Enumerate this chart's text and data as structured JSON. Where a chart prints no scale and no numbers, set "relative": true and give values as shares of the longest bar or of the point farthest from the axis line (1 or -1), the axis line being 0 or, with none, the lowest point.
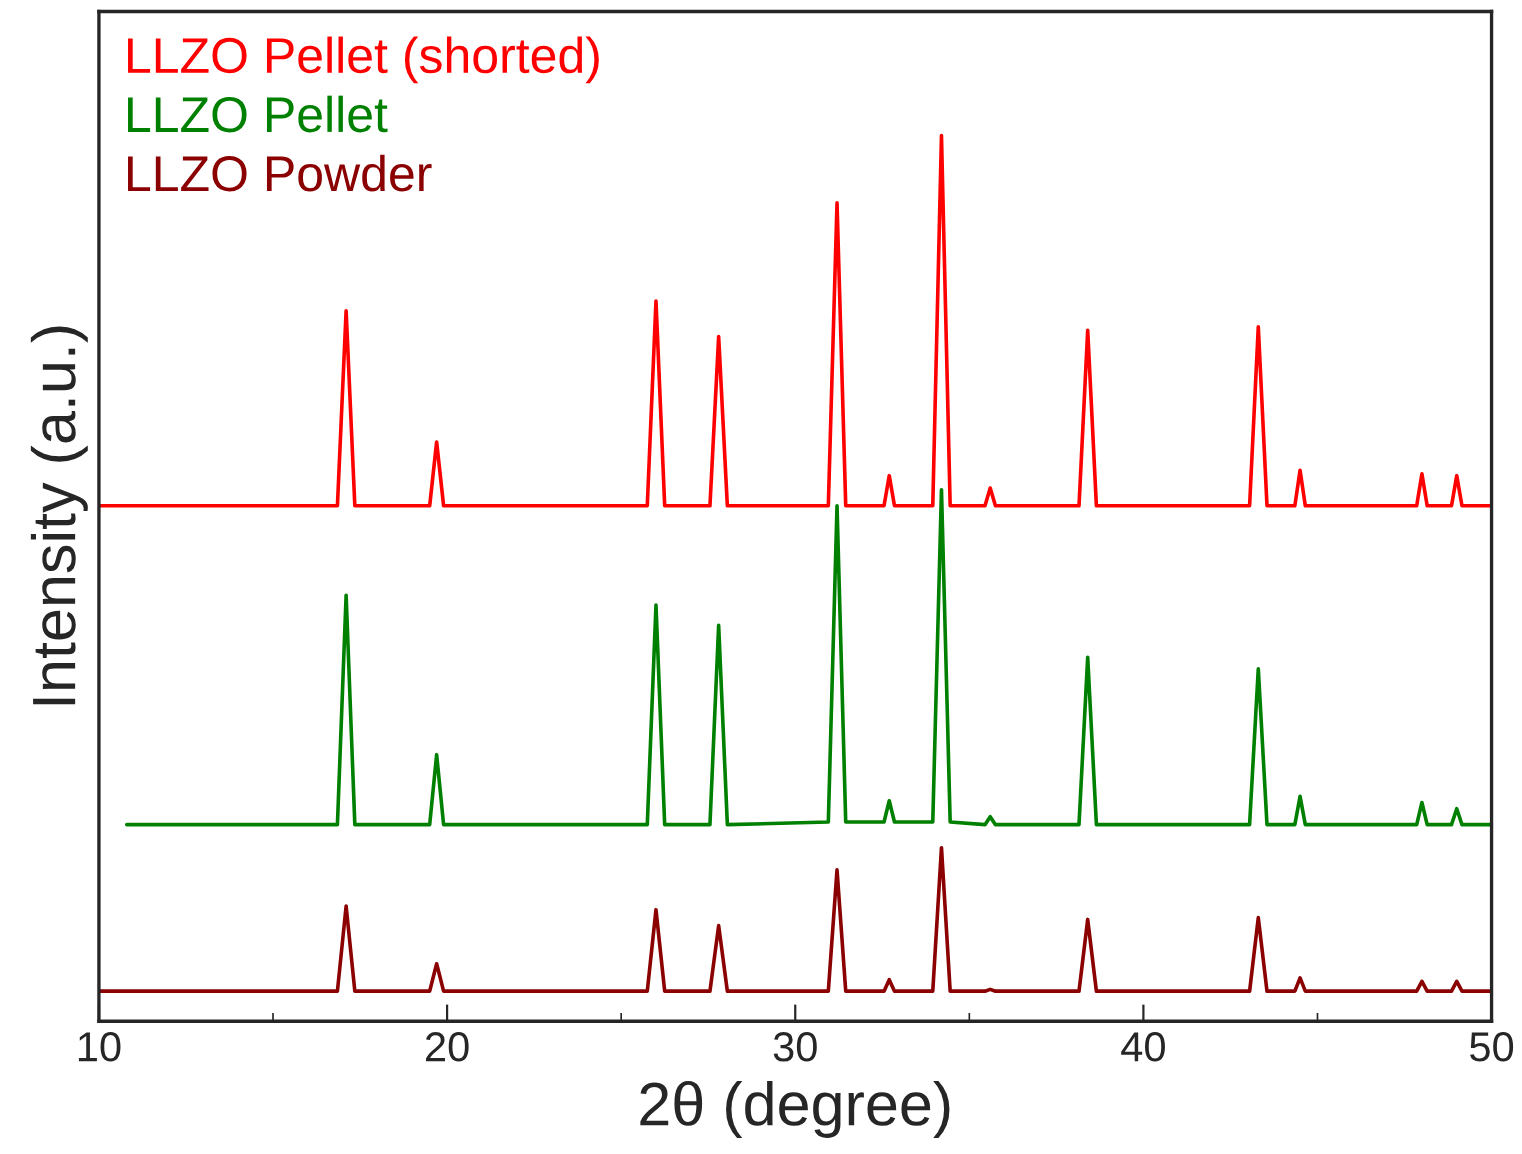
{
  "chart_data": {
    "type": "line",
    "relative": true,
    "xlabel": "2θ (degree)",
    "ylabel": "Intensity (a.u.)",
    "xlim": [
      10,
      50
    ],
    "xticks": [
      10,
      {
        "value": 15,
        "label": null
      },
      20,
      {
        "value": 25,
        "label": null
      },
      30,
      {
        "value": 35,
        "label": null
      },
      40,
      {
        "value": 45,
        "label": null
      },
      50
    ],
    "legend": "top left",
    "grid": false,
    "tick_labels": "x",
    "series": [
      {
        "name": "LLZO Pellet (shorted)",
        "color": "#ff0000",
        "x": [
          10,
          16.85,
          17.1,
          17.35,
          19.5,
          19.7,
          19.9,
          25.75,
          26.0,
          26.25,
          27.55,
          27.8,
          28.05,
          30.95,
          31.2,
          31.45,
          32.55,
          32.7,
          32.85,
          33.95,
          34.2,
          34.45,
          35.45,
          35.6,
          35.75,
          38.15,
          38.4,
          38.65,
          43.05,
          43.3,
          43.55,
          44.35,
          44.5,
          44.65,
          47.85,
          48.0,
          48.15,
          48.85,
          49.0,
          49.15,
          50
        ],
        "values": [
          0.582,
          0.582,
          0.802,
          0.582,
          0.582,
          0.654,
          0.582,
          0.582,
          0.813,
          0.582,
          0.582,
          0.773,
          0.582,
          0.582,
          0.924,
          0.582,
          0.582,
          0.616,
          0.582,
          0.582,
          1,
          0.582,
          0.582,
          0.602,
          0.582,
          0.582,
          0.78,
          0.582,
          0.582,
          0.784,
          0.582,
          0.582,
          0.622,
          0.582,
          0.582,
          0.618,
          0.582,
          0.582,
          0.616,
          0.582,
          0.582
        ]
      },
      {
        "name": "LLZO Pellet",
        "color": "#008000",
        "x": [
          10.8,
          16.85,
          17.1,
          17.35,
          19.5,
          19.7,
          19.9,
          25.75,
          26.0,
          26.25,
          27.55,
          27.8,
          28.05,
          30.95,
          31.2,
          31.45,
          32.55,
          32.7,
          32.85,
          33.95,
          34.2,
          34.45,
          35.45,
          35.6,
          35.75,
          38.15,
          38.4,
          38.65,
          43.05,
          43.3,
          43.55,
          44.35,
          44.5,
          44.65,
          47.85,
          48.0,
          48.15,
          48.85,
          49.0,
          49.15,
          50
        ],
        "values": [
          0.222,
          0.222,
          0.481,
          0.222,
          0.222,
          0.301,
          0.222,
          0.222,
          0.47,
          0.222,
          0.222,
          0.447,
          0.222,
          0.225,
          0.582,
          0.225,
          0.225,
          0.249,
          0.225,
          0.225,
          0.6,
          0.225,
          0.222,
          0.231,
          0.222,
          0.222,
          0.411,
          0.222,
          0.222,
          0.398,
          0.222,
          0.222,
          0.254,
          0.222,
          0.222,
          0.247,
          0.222,
          0.222,
          0.24,
          0.222,
          0.222
        ]
      },
      {
        "name": "LLZO Powder",
        "color": "#8b0000",
        "x": [
          10,
          16.85,
          17.1,
          17.35,
          19.5,
          19.7,
          19.9,
          25.75,
          26.0,
          26.25,
          27.55,
          27.8,
          28.05,
          30.95,
          31.2,
          31.45,
          32.55,
          32.7,
          32.85,
          33.95,
          34.2,
          34.45,
          35.45,
          35.6,
          35.75,
          38.15,
          38.4,
          38.65,
          43.05,
          43.3,
          43.55,
          44.35,
          44.5,
          44.65,
          47.85,
          48.0,
          48.15,
          48.85,
          49.0,
          49.15,
          50
        ],
        "values": [
          0.034,
          0.034,
          0.13,
          0.034,
          0.034,
          0.065,
          0.034,
          0.034,
          0.126,
          0.034,
          0.034,
          0.108,
          0.034,
          0.034,
          0.171,
          0.034,
          0.034,
          0.047,
          0.034,
          0.034,
          0.196,
          0.034,
          0.034,
          0.036,
          0.034,
          0.034,
          0.115,
          0.034,
          0.034,
          0.117,
          0.034,
          0.034,
          0.049,
          0.034,
          0.034,
          0.045,
          0.034,
          0.034,
          0.045,
          0.034,
          0.034
        ]
      }
    ]
  }
}
